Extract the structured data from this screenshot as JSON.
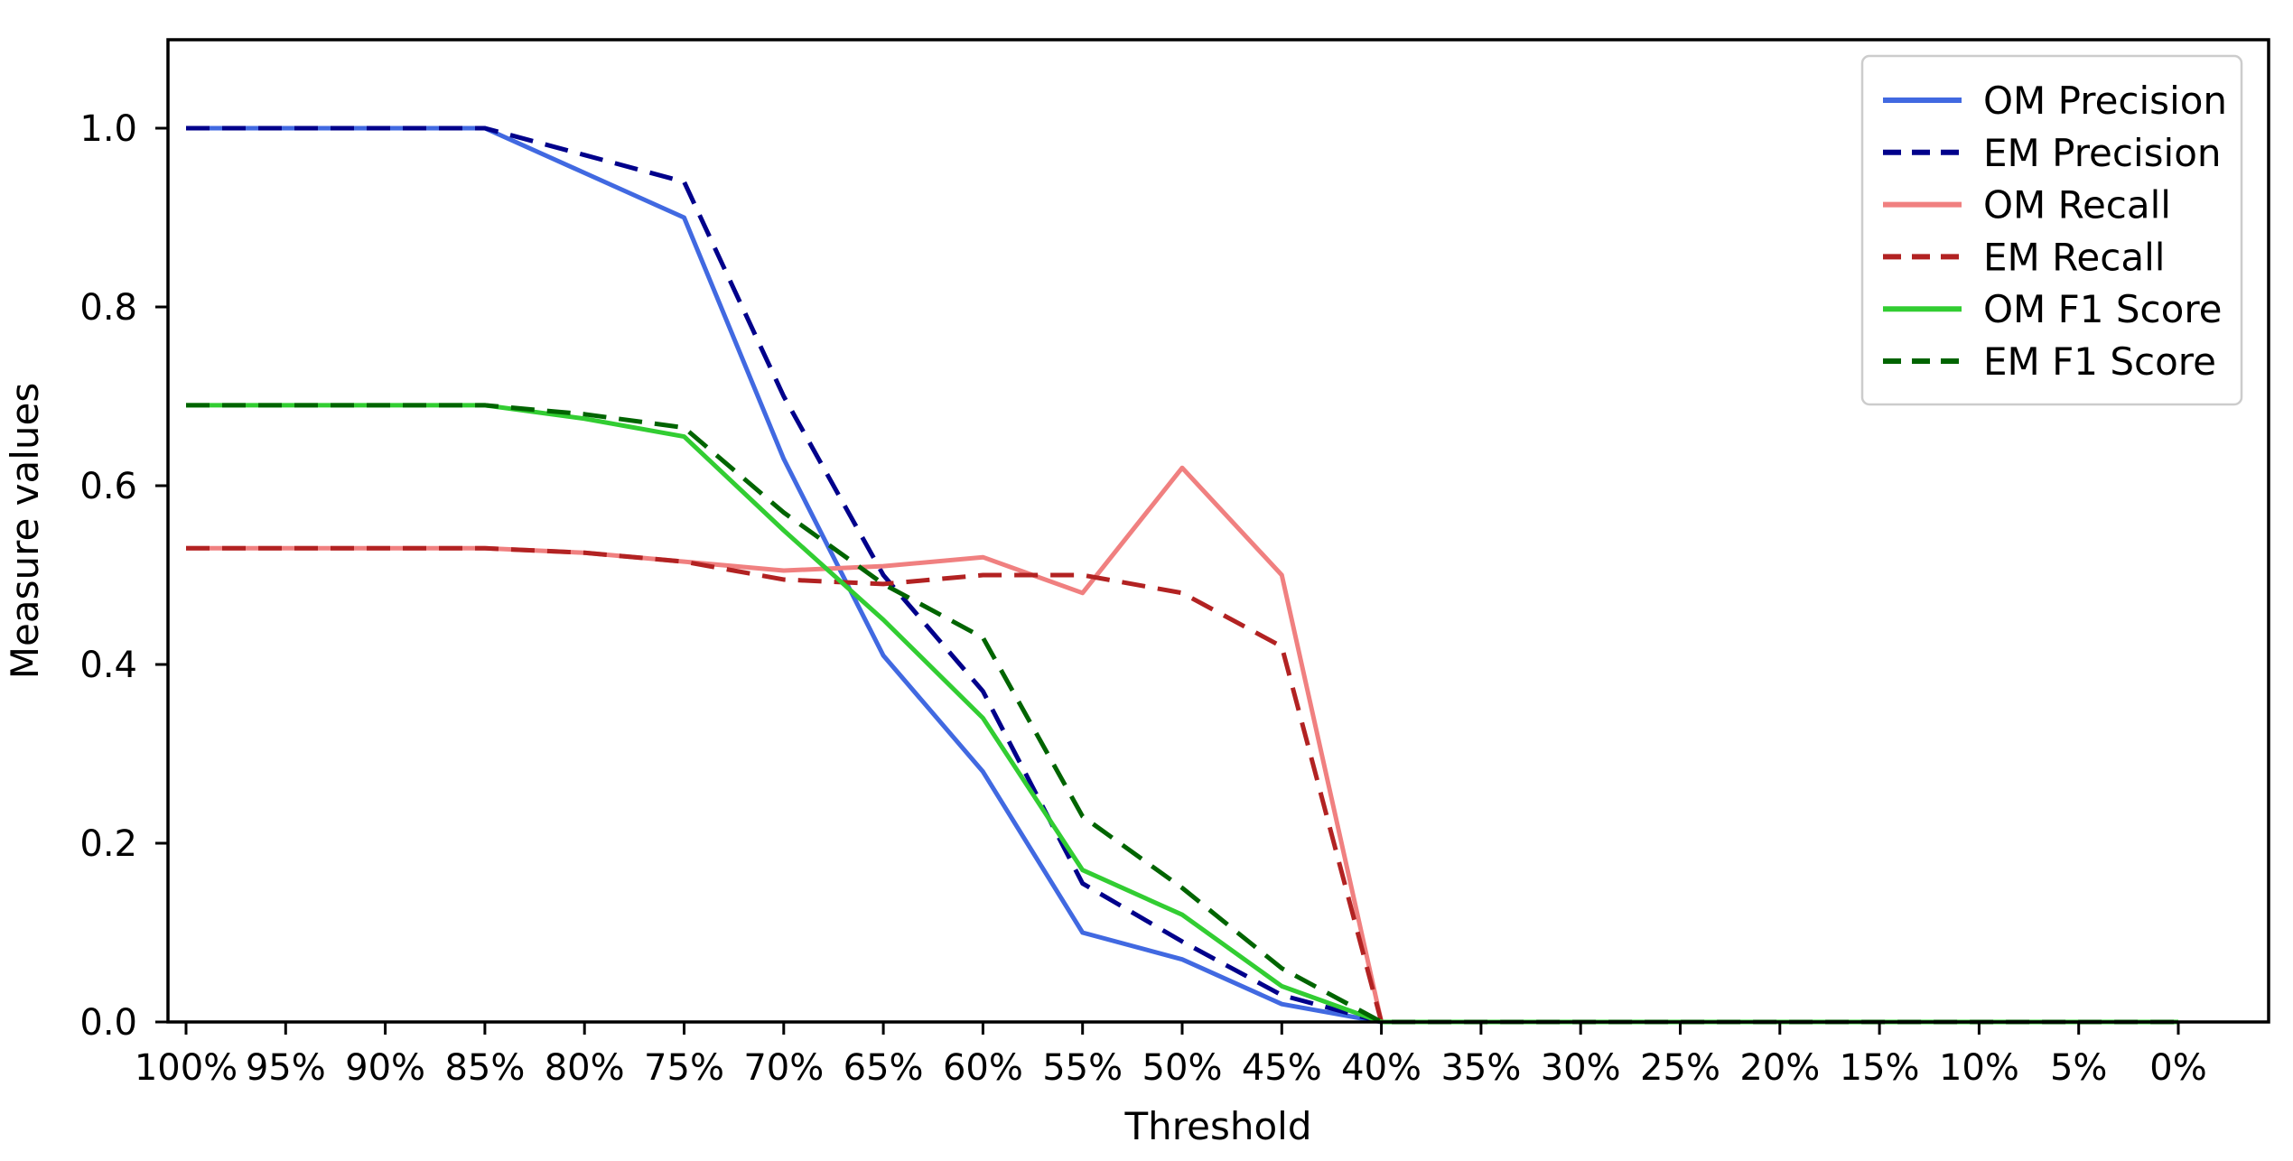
{
  "chart_data": {
    "type": "line",
    "title": "",
    "xlabel": "Threshold",
    "ylabel": "Measure values",
    "categories": [
      "100%",
      "95%",
      "90%",
      "85%",
      "80%",
      "75%",
      "70%",
      "65%",
      "60%",
      "55%",
      "50%",
      "45%",
      "40%",
      "35%",
      "30%",
      "25%",
      "20%",
      "15%",
      "10%",
      "5%",
      "0%"
    ],
    "y_tick_labels": [
      "0.0",
      "0.2",
      "0.4",
      "0.6",
      "0.8",
      "1.0"
    ],
    "y_tick_values": [
      0.0,
      0.2,
      0.4,
      0.6,
      0.8,
      1.0
    ],
    "ylim": [
      0.0,
      1.1
    ],
    "grid": false,
    "background_color": "#ffffff",
    "axis_color": "#000000",
    "legend": {
      "position": "upper right",
      "border_color": "#cccccc",
      "fill_color": "#ffffff"
    },
    "series": [
      {
        "name": "OM Precision",
        "color": "#4169E1",
        "style": "solid",
        "values": [
          1.0,
          1.0,
          1.0,
          1.0,
          0.95,
          0.9,
          0.63,
          0.41,
          0.28,
          0.1,
          0.07,
          0.02,
          0,
          0,
          0,
          0,
          0,
          0,
          0,
          0,
          0
        ]
      },
      {
        "name": "EM Precision",
        "color": "#00008B",
        "style": "dashed",
        "values": [
          1.0,
          1.0,
          1.0,
          1.0,
          0.97,
          0.94,
          0.7,
          0.5,
          0.37,
          0.155,
          0.09,
          0.03,
          0,
          0,
          0,
          0,
          0,
          0,
          0,
          0,
          0
        ]
      },
      {
        "name": "OM Recall",
        "color": "#F08080",
        "style": "solid",
        "values": [
          0.53,
          0.53,
          0.53,
          0.53,
          0.525,
          0.515,
          0.505,
          0.51,
          0.52,
          0.48,
          0.62,
          0.5,
          0,
          0,
          0,
          0,
          0,
          0,
          0,
          0,
          0
        ]
      },
      {
        "name": "EM Recall",
        "color": "#B22222",
        "style": "dashed",
        "values": [
          0.53,
          0.53,
          0.53,
          0.53,
          0.525,
          0.515,
          0.495,
          0.49,
          0.5,
          0.5,
          0.48,
          0.42,
          0,
          0,
          0,
          0,
          0,
          0,
          0,
          0,
          0
        ]
      },
      {
        "name": "OM F1 Score",
        "color": "#32CD32",
        "style": "solid",
        "values": [
          0.69,
          0.69,
          0.69,
          0.69,
          0.675,
          0.655,
          0.55,
          0.45,
          0.34,
          0.17,
          0.12,
          0.04,
          0,
          0,
          0,
          0,
          0,
          0,
          0,
          0,
          0
        ]
      },
      {
        "name": "EM F1 Score",
        "color": "#006400",
        "style": "dashed",
        "values": [
          0.69,
          0.69,
          0.69,
          0.69,
          0.68,
          0.665,
          0.57,
          0.49,
          0.43,
          0.23,
          0.15,
          0.06,
          0,
          0,
          0,
          0,
          0,
          0,
          0,
          0,
          0
        ]
      }
    ]
  }
}
